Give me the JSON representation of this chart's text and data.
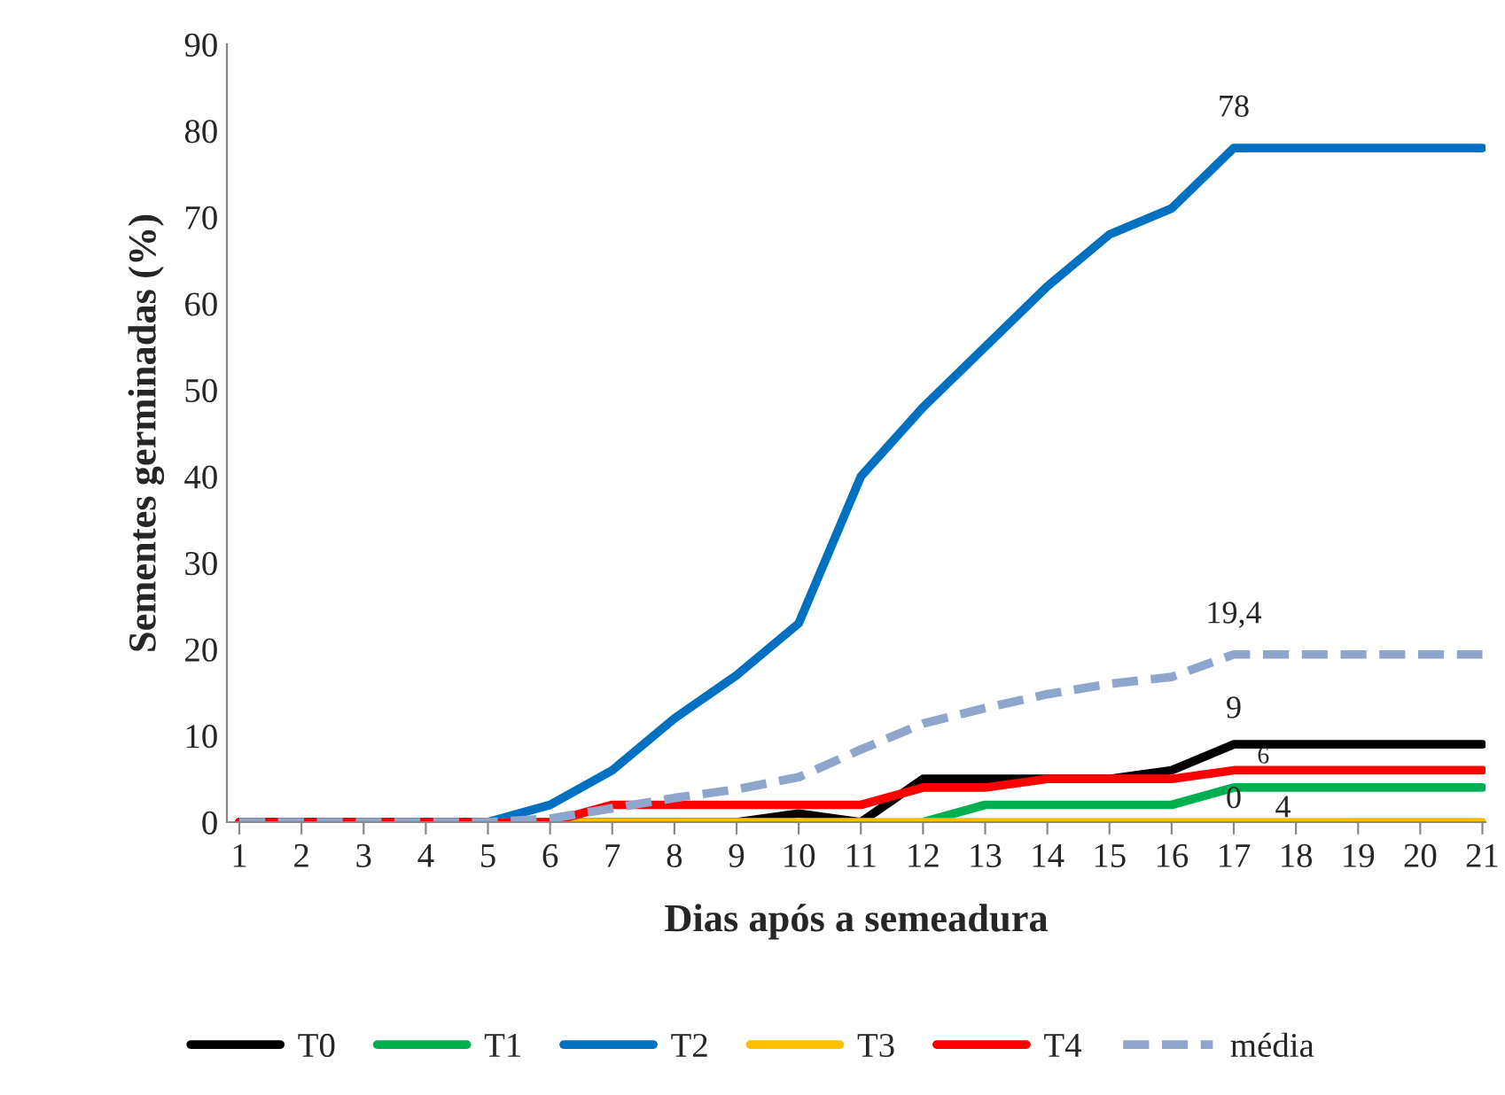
{
  "chart_data": {
    "type": "line",
    "xlabel": "Dias após a semeadura",
    "ylabel": "Sementes germinadas (%)",
    "categories": [
      "1",
      "2",
      "3",
      "4",
      "5",
      "6",
      "7",
      "8",
      "9",
      "10",
      "11",
      "12",
      "13",
      "14",
      "15",
      "16",
      "17",
      "18",
      "19",
      "20",
      "21"
    ],
    "series": [
      {
        "name": "T0",
        "color": "#000000",
        "values": [
          0,
          0,
          0,
          0,
          0,
          0,
          0,
          0,
          0,
          1,
          0,
          5,
          5,
          5,
          5,
          6,
          9,
          9,
          9,
          9,
          9
        ]
      },
      {
        "name": "T1",
        "color": "#00b050",
        "values": [
          null,
          null,
          null,
          null,
          null,
          null,
          null,
          null,
          null,
          null,
          null,
          0,
          2,
          2,
          2,
          2,
          4,
          4,
          4,
          4,
          4
        ]
      },
      {
        "name": "T2",
        "color": "#0070c0",
        "values": [
          0,
          0,
          0,
          0,
          0,
          2,
          6,
          12,
          17,
          23,
          40,
          48,
          55,
          62,
          68,
          71,
          78,
          78,
          78,
          78,
          78
        ]
      },
      {
        "name": "T3",
        "color": "#ffc000",
        "values": [
          null,
          null,
          null,
          null,
          0,
          0,
          0,
          0,
          0,
          0,
          0,
          0,
          0,
          0,
          0,
          0,
          0,
          0,
          0,
          0,
          0
        ]
      },
      {
        "name": "T4",
        "color": "#ff0000",
        "values": [
          0,
          0,
          0,
          0,
          0,
          0,
          2,
          2,
          2,
          2,
          2,
          4,
          4,
          5,
          5,
          5,
          6,
          6,
          6,
          6,
          6
        ]
      },
      {
        "name": "média",
        "color": "#8ea5cc",
        "line_style": "dashed",
        "values": [
          0,
          0,
          0,
          0,
          0,
          0.4,
          1.6,
          2.8,
          3.8,
          5.2,
          8.4,
          11.4,
          13.2,
          14.8,
          16,
          16.8,
          19.4,
          19.4,
          19.4,
          19.4,
          19.4
        ]
      }
    ],
    "annotations": [
      {
        "text": "78",
        "x": "17",
        "y": 78
      },
      {
        "text": "19,4",
        "x": "17",
        "y": 19.4
      },
      {
        "text": "9",
        "x": "17",
        "y": 9
      },
      {
        "text": "6",
        "x": "17",
        "y": 6
      },
      {
        "text": "4",
        "x": "17",
        "y": 4
      },
      {
        "text": "0",
        "x": "17",
        "y": 0
      }
    ],
    "ylim": [
      0,
      90
    ],
    "yticks": [
      0,
      10,
      20,
      30,
      40,
      50,
      60,
      70,
      80,
      90
    ],
    "grid": false,
    "legend": "bottom",
    "marker": "none",
    "line_style": "solid"
  }
}
